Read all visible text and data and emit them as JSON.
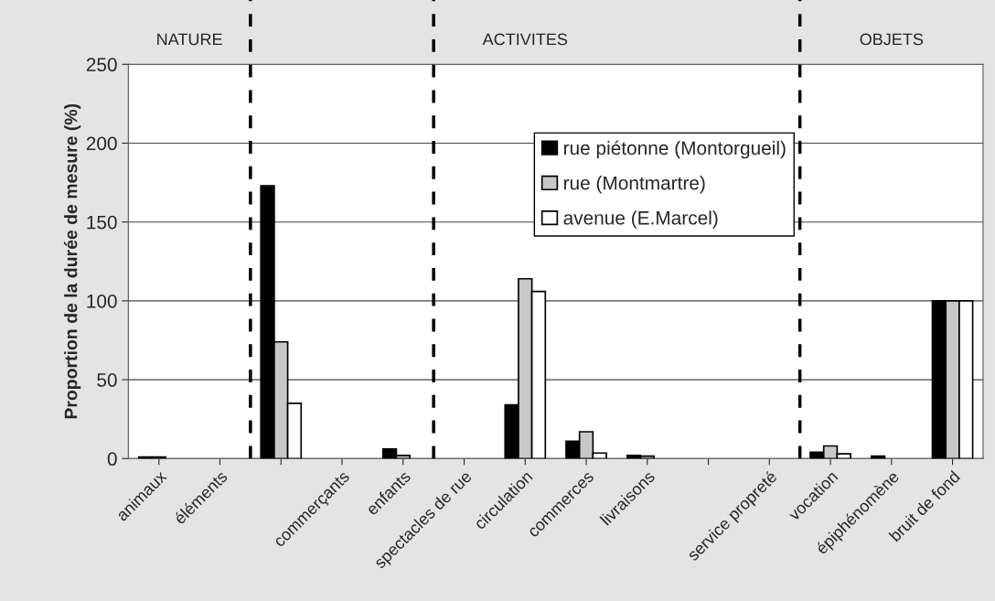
{
  "chart_data": {
    "type": "bar",
    "ylabel": "Proportion de la durée de mesure (%)",
    "categories": [
      "animaux",
      "éléments",
      null,
      "commerçants",
      "enfants",
      "spectacles de rue",
      "circulation",
      "commerces",
      "livraisons",
      null,
      "service propreté",
      "vocation",
      "épiphénomène",
      "bruit de fond"
    ],
    "series": [
      {
        "name": "rue piétonne (Montorgueil)",
        "color": "#000000",
        "values": [
          1,
          null,
          173,
          null,
          6,
          null,
          34,
          11,
          2,
          null,
          null,
          4,
          1.5,
          100
        ]
      },
      {
        "name": "rue (Montmartre)",
        "color": "#c8c8c8",
        "values": [
          1,
          null,
          74,
          null,
          2,
          null,
          114,
          17,
          1.5,
          null,
          null,
          8,
          null,
          100
        ]
      },
      {
        "name": "avenue (E.Marcel)",
        "color": "#ffffff",
        "values": [
          null,
          null,
          35,
          null,
          null,
          null,
          106,
          3.5,
          null,
          null,
          null,
          3,
          null,
          100
        ]
      }
    ],
    "ylim": [
      0,
      250
    ],
    "yticks": [
      0,
      50,
      100,
      150,
      200,
      250
    ],
    "grid": "y",
    "legend": "top right",
    "annotations": [
      "NATURE",
      "ACTIVITES",
      "OBJETS"
    ]
  }
}
